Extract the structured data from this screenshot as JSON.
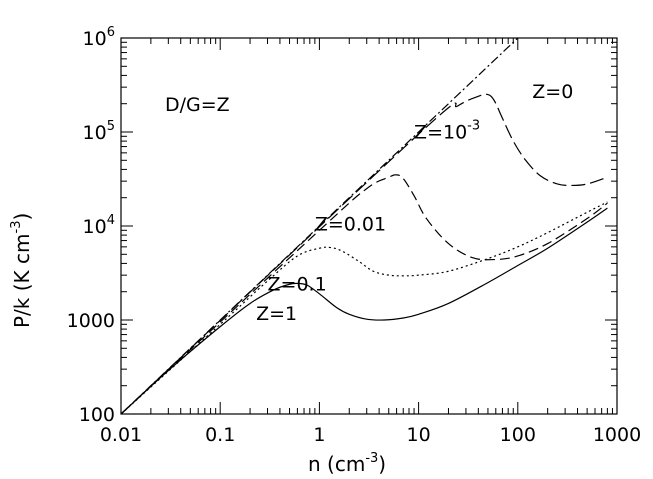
{
  "chart_data": {
    "type": "line",
    "xscale": "log",
    "yscale": "log",
    "xlim": [
      0.01,
      1000
    ],
    "ylim": [
      100,
      1000000
    ],
    "xlabel_base": "n  (cm",
    "xlabel_exp": "-3",
    "xlabel_tail": ")",
    "ylabel_base": "P/k  (K cm",
    "ylabel_exp": "-3",
    "ylabel_tail": ")",
    "xticks": [
      {
        "value": 0.01,
        "label": "0.01"
      },
      {
        "value": 0.1,
        "label": "0.1"
      },
      {
        "value": 1,
        "label": "1"
      },
      {
        "value": 10,
        "label": "10"
      },
      {
        "value": 100,
        "label": "100"
      },
      {
        "value": 1000,
        "label": "1000"
      }
    ],
    "yticks": [
      {
        "value": 100,
        "base": "100",
        "exp": ""
      },
      {
        "value": 1000,
        "base": "1000",
        "exp": ""
      },
      {
        "value": 10000,
        "base": "10",
        "exp": "4"
      },
      {
        "value": 100000,
        "base": "10",
        "exp": "5"
      },
      {
        "value": 1000000,
        "base": "10",
        "exp": "6"
      }
    ],
    "annotation": "D/G=Z",
    "series": [
      {
        "name": "Z=1",
        "dash": "",
        "label_at": [
          0.23,
          1000
        ],
        "x": [
          0.01,
          0.03,
          0.1,
          0.2,
          0.35,
          0.5,
          0.6,
          0.75,
          1,
          1.5,
          2,
          3,
          4.5,
          7,
          10,
          20,
          50,
          100,
          200,
          500,
          800
        ],
        "y": [
          100,
          290,
          850,
          1500,
          2100,
          2400,
          2450,
          2350,
          1900,
          1350,
          1150,
          1020,
          1000,
          1050,
          1150,
          1500,
          2500,
          3800,
          5800,
          11000,
          15500
        ]
      },
      {
        "name": "Z=0.1",
        "dash": "2,3",
        "label_at": [
          0.3,
          2050
        ],
        "x": [
          0.01,
          0.1,
          0.3,
          0.6,
          1,
          1.3,
          1.7,
          2.5,
          3.5,
          5,
          7,
          10,
          20,
          50,
          100,
          200,
          500,
          800
        ],
        "y": [
          100,
          900,
          2600,
          4800,
          5800,
          5900,
          5400,
          4200,
          3300,
          3000,
          2950,
          3000,
          3300,
          4500,
          6000,
          8500,
          14000,
          18000
        ]
      },
      {
        "name": "Z=0.01",
        "dash": "10,5",
        "label_at": [
          0.9,
          9000
        ],
        "x": [
          0.01,
          1,
          3,
          5,
          6,
          7,
          9,
          12,
          20,
          35,
          60,
          100,
          200,
          500,
          800
        ],
        "y": [
          100,
          9000,
          25000,
          33000,
          35000,
          32000,
          21000,
          12000,
          6500,
          4600,
          4400,
          4800,
          6500,
          12000,
          17500
        ]
      },
      {
        "name": "Z=10",
        "name_exp": "-3",
        "dash": "14,5",
        "label_at": [
          9,
          85000
        ],
        "x": [
          0.01,
          10,
          25,
          40,
          50,
          58,
          70,
          90,
          120,
          170,
          250,
          350,
          500,
          800
        ],
        "y": [
          100,
          95000,
          190000,
          240000,
          250000,
          215000,
          140000,
          80000,
          50000,
          34000,
          28000,
          27000,
          28000,
          33000
        ]
      },
      {
        "name": "Z=0",
        "dash": "9,3,2,3",
        "label_at": [
          140,
          230000
        ],
        "x": [
          0.01,
          100
        ],
        "y": [
          100,
          1000000
        ]
      }
    ]
  }
}
